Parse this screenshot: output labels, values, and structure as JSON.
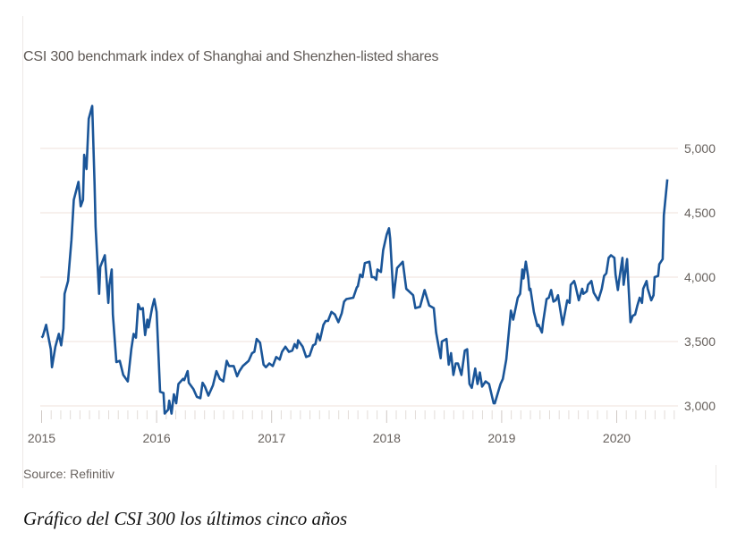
{
  "caption": "Gráfico del CSI 300 los últimos cinco años",
  "colors": {
    "line": "#1a5598",
    "grid": "#f2e6e2",
    "text": "#66605c"
  },
  "chart_data": {
    "type": "line",
    "title": "CSI 300 benchmark index of Shanghai and Shenzhen-listed shares",
    "source": "Source: Refinitiv",
    "xlabel": "",
    "ylabel": "",
    "xlim": [
      2015,
      2020.5
    ],
    "ylim": [
      2900,
      5400
    ],
    "y_axis_position": "right",
    "grid": "horizontal",
    "x_ticks": [
      "2015",
      "2016",
      "2017",
      "2018",
      "2019",
      "2020"
    ],
    "y_ticks": [
      {
        "value": 3000,
        "label": "3,000"
      },
      {
        "value": 3500,
        "label": "3,500"
      },
      {
        "value": 4000,
        "label": "4,000"
      },
      {
        "value": 4500,
        "label": "4,500"
      },
      {
        "value": 5000,
        "label": "5,000"
      }
    ],
    "series": [
      {
        "x": [
          2015.0,
          2015.01,
          2015.04,
          2015.05,
          2015.08,
          2015.09,
          2015.12,
          2015.15,
          2015.17,
          2015.19,
          2015.2,
          2015.23,
          2015.26,
          2015.28,
          2015.32,
          2015.34,
          2015.36,
          2015.37,
          2015.39,
          2015.41,
          2015.44,
          2015.46,
          2015.47,
          2015.5,
          2015.51,
          2015.55,
          2015.58,
          2015.59,
          2015.61,
          2015.62,
          2015.65,
          2015.68,
          2015.71,
          2015.75,
          2015.78,
          2015.8,
          2015.82,
          2015.84,
          2015.86,
          2015.88,
          2015.9,
          2015.92,
          2015.93,
          2015.96,
          2015.98,
          2016.0,
          2016.03,
          2016.06,
          2016.07,
          2016.1,
          2016.11,
          2016.13,
          2016.15,
          2016.17,
          2016.19,
          2016.23,
          2016.24,
          2016.27,
          2016.28,
          2016.32,
          2016.35,
          2016.38,
          2016.4,
          2016.42,
          2016.45,
          2016.49,
          2016.52,
          2016.55,
          2016.58,
          2016.61,
          2016.63,
          2016.67,
          2016.7,
          2016.72,
          2016.75,
          2016.8,
          2016.83,
          2016.85,
          2016.87,
          2016.9,
          2016.93,
          2016.95,
          2016.98,
          2017.01,
          2017.04,
          2017.07,
          2017.09,
          2017.12,
          2017.15,
          2017.18,
          2017.2,
          2017.22,
          2017.23,
          2017.27,
          2017.3,
          2017.33,
          2017.36,
          2017.38,
          2017.4,
          2017.42,
          2017.45,
          2017.47,
          2017.49,
          2017.52,
          2017.55,
          2017.58,
          2017.61,
          2017.63,
          2017.65,
          2017.71,
          2017.74,
          2017.75,
          2017.77,
          2017.79,
          2017.81,
          2017.85,
          2017.87,
          2017.89,
          2017.91,
          2017.92,
          2017.95,
          2017.97,
          2018.0,
          2018.02,
          2018.03,
          2018.06,
          2018.09,
          2018.14,
          2018.17,
          2018.23,
          2018.25,
          2018.29,
          2018.33,
          2018.37,
          2018.41,
          2018.43,
          2018.47,
          2018.48,
          2018.52,
          2018.54,
          2018.56,
          2018.58,
          2018.6,
          2018.62,
          2018.65,
          2018.68,
          2018.7,
          2018.72,
          2018.74,
          2018.77,
          2018.79,
          2018.81,
          2018.83,
          2018.86,
          2018.89,
          2018.93,
          2018.94,
          2018.99,
          2019.01,
          2019.04,
          2019.08,
          2019.1,
          2019.14,
          2019.16,
          2019.18,
          2019.19,
          2019.21,
          2019.23,
          2019.24,
          2019.25,
          2019.28,
          2019.31,
          2019.32,
          2019.35,
          2019.36,
          2019.39,
          2019.41,
          2019.43,
          2019.45,
          2019.47,
          2019.49,
          2019.5,
          2019.53,
          2019.57,
          2019.59,
          2019.6,
          2019.63,
          2019.64,
          2019.67,
          2019.7,
          2019.71,
          2019.74,
          2019.75,
          2019.78,
          2019.8,
          2019.84,
          2019.87,
          2019.89,
          2019.91,
          2019.93,
          2019.95,
          2019.98,
          2019.99,
          2020.01,
          2020.02,
          2020.05,
          2020.06,
          2020.09,
          2020.1,
          2020.12,
          2020.14,
          2020.16,
          2020.18,
          2020.2,
          2020.22,
          2020.23,
          2020.26,
          2020.27,
          2020.3,
          2020.32,
          2020.33,
          2020.36,
          2020.37,
          2020.4,
          2020.41,
          2020.44
        ],
        "y": [
          3530,
          3540,
          3630,
          3580,
          3440,
          3300,
          3460,
          3560,
          3470,
          3600,
          3870,
          3970,
          4290,
          4600,
          4740,
          4550,
          4600,
          4950,
          4840,
          5230,
          5330,
          4730,
          4390,
          3870,
          4080,
          4170,
          3800,
          3940,
          4060,
          3710,
          3340,
          3350,
          3240,
          3190,
          3440,
          3560,
          3530,
          3790,
          3750,
          3760,
          3550,
          3670,
          3610,
          3760,
          3830,
          3730,
          3110,
          3100,
          2940,
          2970,
          3040,
          2940,
          3090,
          3020,
          3170,
          3210,
          3200,
          3270,
          3180,
          3130,
          3070,
          3060,
          3180,
          3150,
          3080,
          3160,
          3270,
          3210,
          3190,
          3350,
          3310,
          3310,
          3230,
          3270,
          3310,
          3350,
          3410,
          3420,
          3520,
          3490,
          3320,
          3300,
          3330,
          3310,
          3380,
          3360,
          3420,
          3460,
          3420,
          3430,
          3480,
          3450,
          3510,
          3460,
          3380,
          3390,
          3470,
          3480,
          3560,
          3510,
          3630,
          3660,
          3660,
          3730,
          3710,
          3650,
          3720,
          3810,
          3830,
          3840,
          3920,
          3930,
          4020,
          4000,
          4110,
          4120,
          4000,
          4000,
          3980,
          4060,
          4040,
          4210,
          4330,
          4380,
          4300,
          3840,
          4070,
          4120,
          3910,
          3860,
          3760,
          3770,
          3900,
          3780,
          3760,
          3570,
          3370,
          3500,
          3520,
          3320,
          3410,
          3240,
          3330,
          3330,
          3240,
          3430,
          3440,
          3170,
          3140,
          3290,
          3170,
          3260,
          3150,
          3190,
          3170,
          3020,
          3020,
          3170,
          3210,
          3360,
          3740,
          3670,
          3840,
          3870,
          4060,
          3990,
          4120,
          4000,
          3900,
          3910,
          3730,
          3620,
          3630,
          3570,
          3650,
          3830,
          3840,
          3900,
          3810,
          3820,
          3860,
          3800,
          3630,
          3820,
          3800,
          3940,
          3970,
          3940,
          3820,
          3910,
          3870,
          3890,
          3940,
          3970,
          3880,
          3820,
          3910,
          4010,
          4030,
          4150,
          4170,
          4150,
          4020,
          3900,
          3970,
          4150,
          3940,
          4140,
          3970,
          3650,
          3700,
          3710,
          3780,
          3840,
          3800,
          3910,
          3970,
          3910,
          3820,
          3860,
          4000,
          4010,
          4100,
          4140,
          4480,
          4760
        ]
      }
    ]
  }
}
